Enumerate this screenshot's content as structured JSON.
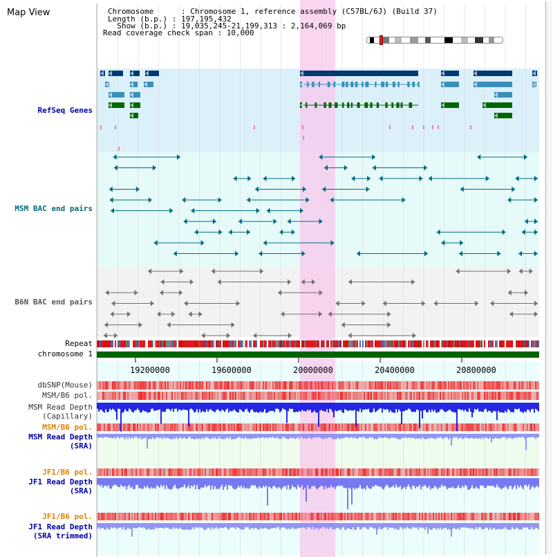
{
  "header": {
    "title": "Map View",
    "info_lines": [
      "Chromosome      : Chromosome 1, reference assembly (C57BL/6J) (Build 37)",
      "Length (b.p.) : 197,195,432",
      "  Show (b.p.) : 19,035,245-21,199,313 : 2,164,069 bp",
      "Read coverage check span : 10,000"
    ]
  },
  "tracks": {
    "refseq": "RefSeq Genes",
    "msm_bac": "MSM BAC end pairs",
    "b6n_bac": "B6N BAC end pairs",
    "repeat": "Repeat",
    "chromosome": "chromosome 1",
    "dbsnp": "dbSNP(Mouse)",
    "msm_b6_pol_1": "MSM/B6 pol.",
    "msm_read_depth_cap_1": "MSM Read Depth",
    "msm_read_depth_cap_2": "(Capillary)",
    "msm_b6_pol_2": "MSM/B6 pol.",
    "msm_read_depth_sra_1": "MSM Read Depth",
    "msm_read_depth_sra_2": "(SRA)",
    "jf1_b6_pol_1": "JF1/B6 pol.",
    "jf1_read_depth_sra_1": "JF1 Read Depth",
    "jf1_read_depth_sra_2": "(SRA)",
    "jf1_b6_pol_2": "JF1/B6 pol.",
    "jf1_read_depth_trim_1": "JF1 Read Depth",
    "jf1_read_depth_trim_2": "(SRA trimmed)"
  },
  "axis": {
    "ticks": [
      "19200000",
      "19600000",
      "20000000",
      "20400000",
      "20800000"
    ]
  },
  "colors": {
    "refseq_bg": "#dcf0fa",
    "msm_bg": "#e6fafa",
    "b6n_bg": "#f2f2f2",
    "highlight": "#f8d8f2",
    "chromosome_bar": "#006400",
    "label_blue": "#0000aa",
    "label_teal": "#006a7a",
    "label_orange": "#e08000"
  }
}
